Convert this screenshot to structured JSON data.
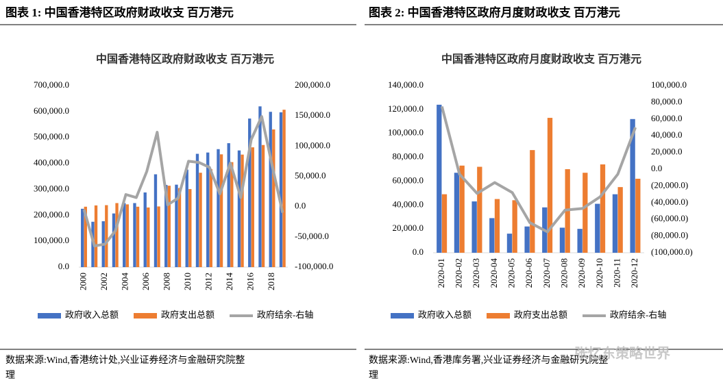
{
  "headings": [
    "图表 1:  中国香港特区政府财政收支  百万港元",
    "图表 2:  中国香港特区政府月度财政收支  百万港元"
  ],
  "sources": [
    [
      "数据来源:Wind,香港统计处,兴业证券经济与金融研究院整",
      "理"
    ],
    [
      "数据来源:Wind,香港库务署,兴业证券经济与金融研究院整",
      "理"
    ]
  ],
  "watermark": "张忆东策略世界",
  "chart_data": [
    {
      "type": "bar",
      "title": "中国香港特区政府财政收支 百万港元",
      "categories": [
        "2000",
        null,
        "2002",
        null,
        "2004",
        null,
        "2006",
        null,
        "2008",
        null,
        "2010",
        null,
        "2012",
        null,
        "2014",
        null,
        "2016",
        null,
        "2018",
        null
      ],
      "series": [
        {
          "name": "政府收入总额",
          "color": "#4472c4",
          "values": [
            225000,
            175000,
            177000,
            207000,
            247000,
            247000,
            288000,
            358000,
            317000,
            318000,
            376000,
            437000,
            442000,
            455000,
            478000,
            450000,
            573000,
            620000,
            599000,
            597000
          ]
        },
        {
          "name": "政府支出总额",
          "color": "#ed7d31",
          "values": [
            233000,
            238000,
            239000,
            247000,
            242000,
            233000,
            230000,
            234000,
            314000,
            305000,
            301000,
            364000,
            378000,
            435000,
            405000,
            434000,
            462000,
            471000,
            531000,
            607000
          ]
        },
        {
          "name": "政府结余-右轴",
          "color": "#a5a5a5",
          "type": "line",
          "axis": "y2",
          "values": [
            -5000,
            -65000,
            -62000,
            -40000,
            20000,
            15000,
            58000,
            123000,
            3000,
            14000,
            75000,
            73000,
            65000,
            21000,
            72000,
            15000,
            111000,
            149000,
            68000,
            -10000
          ]
        }
      ],
      "ylim": [
        0,
        700000
      ],
      "yticks": [
        {
          "value": 0,
          "label": "0.0"
        },
        {
          "value": 100000,
          "label": "100,000.0"
        },
        {
          "value": 200000,
          "label": "200,000.0"
        },
        {
          "value": 300000,
          "label": "300,000.0"
        },
        {
          "value": 400000,
          "label": "400,000.0"
        },
        {
          "value": 500000,
          "label": "500,000.0"
        },
        {
          "value": 600000,
          "label": "600,000.0"
        },
        {
          "value": 700000,
          "label": "700,000.0"
        }
      ],
      "y2lim": [
        -100000,
        200000
      ],
      "y2ticks": [
        {
          "value": -100000,
          "label": "-100,000.0"
        },
        {
          "value": -50000,
          "label": "-50,000.0"
        },
        {
          "value": 0,
          "label": "0.0"
        },
        {
          "value": 50000,
          "label": "50,000.0"
        },
        {
          "value": 100000,
          "label": "100,000.0"
        },
        {
          "value": 150000,
          "label": "150,000.0"
        },
        {
          "value": 200000,
          "label": "200,000.0"
        }
      ],
      "grid": false,
      "legend": "bottom"
    },
    {
      "type": "bar",
      "title": "中国香港特区政府月度财政收支 百万港元",
      "categories": [
        "2020-01",
        "2020-02",
        "2020-03",
        "2020-04",
        "2020-05",
        "2020-06",
        "2020-07",
        "2020-08",
        "2020-09",
        "2020-10",
        "2020-11",
        "2020-12"
      ],
      "series": [
        {
          "name": "政府收入总额",
          "color": "#4472c4",
          "values": [
            124000,
            67000,
            43000,
            29000,
            16000,
            22000,
            38000,
            21000,
            20000,
            41000,
            49000,
            112000
          ]
        },
        {
          "name": "政府支出总额",
          "color": "#ed7d31",
          "values": [
            49000,
            73000,
            72000,
            45000,
            44000,
            86000,
            113000,
            70000,
            67000,
            74000,
            55000,
            62000
          ]
        },
        {
          "name": "政府结余-右轴",
          "color": "#a5a5a5",
          "type": "line",
          "axis": "y2",
          "values": [
            75000,
            -6000,
            -29000,
            -16000,
            -28000,
            -64000,
            -75000,
            -49000,
            -47000,
            -33000,
            -6000,
            50000
          ]
        }
      ],
      "ylim": [
        0,
        140000
      ],
      "yticks": [
        {
          "value": 0,
          "label": "0.0"
        },
        {
          "value": 20000,
          "label": "20,000.0"
        },
        {
          "value": 40000,
          "label": "40,000.0"
        },
        {
          "value": 60000,
          "label": "60,000.0"
        },
        {
          "value": 80000,
          "label": "80,000.0"
        },
        {
          "value": 100000,
          "label": "100,000.0"
        },
        {
          "value": 120000,
          "label": "120,000.0"
        },
        {
          "value": 140000,
          "label": "140,000.0"
        }
      ],
      "y2lim": [
        -100000,
        100000
      ],
      "y2ticks": [
        {
          "value": -100000,
          "label": "(100,000.0)"
        },
        {
          "value": -80000,
          "label": "(80,000.0)"
        },
        {
          "value": -60000,
          "label": "(60,000.0)"
        },
        {
          "value": -40000,
          "label": "(40,000.0)"
        },
        {
          "value": -20000,
          "label": "(20,000.0)"
        },
        {
          "value": 0,
          "label": "0.0"
        },
        {
          "value": 20000,
          "label": "20,000.0"
        },
        {
          "value": 40000,
          "label": "40,000.0"
        },
        {
          "value": 60000,
          "label": "60,000.0"
        },
        {
          "value": 80000,
          "label": "80,000.0"
        },
        {
          "value": 100000,
          "label": "100,000.0"
        }
      ],
      "y2_negative_label_color": "#ff0000",
      "grid": false,
      "legend": "bottom"
    }
  ]
}
